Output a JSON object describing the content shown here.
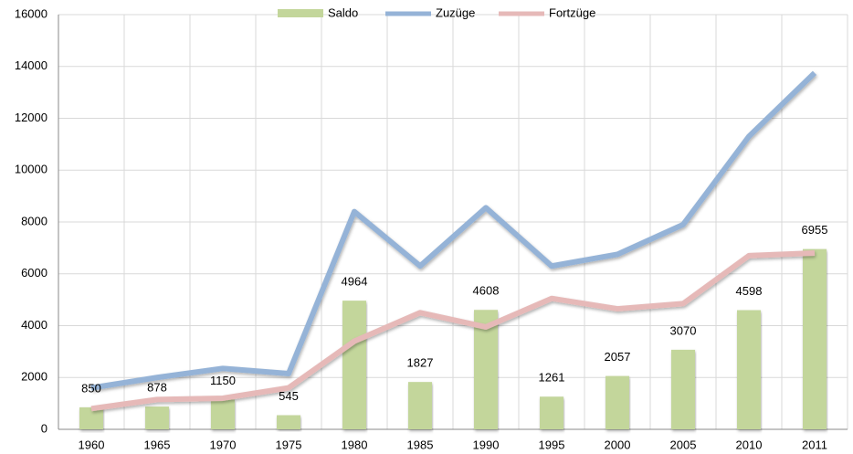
{
  "chart_data": {
    "type": "bar",
    "categories": [
      "1960",
      "1965",
      "1970",
      "1975",
      "1980",
      "1985",
      "1990",
      "1995",
      "2000",
      "2005",
      "2010",
      "2011"
    ],
    "series": [
      {
        "name": "Saldo",
        "type": "bar",
        "color": "#c3d69b",
        "values": [
          850,
          878,
          1150,
          545,
          4964,
          1827,
          4608,
          1261,
          2057,
          3070,
          4598,
          6955
        ]
      },
      {
        "name": "Zuzüge",
        "type": "line",
        "color": "#95b3d7",
        "values": [
          1600,
          2000,
          2350,
          2150,
          8400,
          6300,
          8550,
          6300,
          6750,
          7900,
          11300,
          13750
        ]
      },
      {
        "name": "Fortzüge",
        "type": "line",
        "color": "#e6b9b8",
        "values": [
          800,
          1150,
          1200,
          1600,
          3400,
          4500,
          3950,
          5050,
          4650,
          4850,
          6700,
          6800
        ]
      }
    ],
    "ylim": [
      0,
      16000
    ],
    "yticks": [
      0,
      2000,
      4000,
      6000,
      8000,
      10000,
      12000,
      14000,
      16000
    ],
    "grid": true,
    "legend": "top"
  }
}
